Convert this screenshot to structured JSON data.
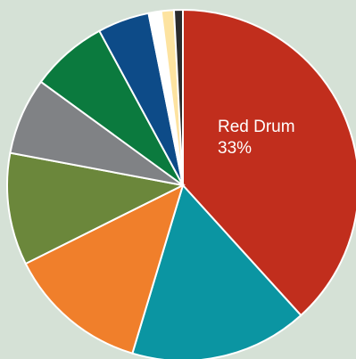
{
  "chart_data": {
    "type": "pie",
    "categories": [
      "Red Drum",
      null,
      null,
      null,
      null,
      null,
      null,
      null,
      null,
      null
    ],
    "values": [
      33,
      14.1,
      11.2,
      8.9,
      6.1,
      6.1,
      4.1,
      1,
      1,
      0.7
    ],
    "value_labels": [
      "33%",
      null,
      null,
      null,
      null,
      null,
      null,
      null,
      null,
      null
    ],
    "colors": [
      "#c12e1d",
      "#0b95a2",
      "#f07f2b",
      "#6b873b",
      "#808285",
      "#0b7a3e",
      "#0d4b88",
      "#ffffff",
      "#fde3a0",
      "#2b2b2b"
    ]
  }
}
